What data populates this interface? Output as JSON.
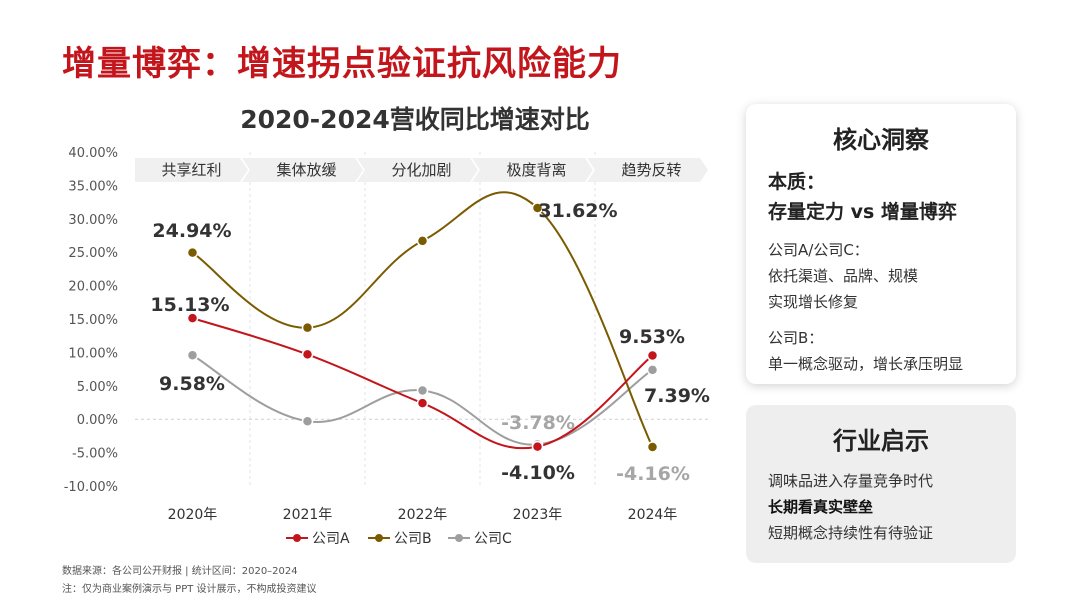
{
  "page_title": "增量博弈：增速拐点验证抗风险能力",
  "chart_data": {
    "type": "line",
    "title": "2020-2024营收同比增速对比",
    "categories": [
      "2020年",
      "2021年",
      "2022年",
      "2023年",
      "2024年"
    ],
    "y_ticks": [
      "40.00%",
      "35.00%",
      "30.00%",
      "25.00%",
      "20.00%",
      "15.00%",
      "10.00%",
      "5.00%",
      "0.00%",
      "-5.00%",
      "-10.00%"
    ],
    "ylim": [
      -10,
      40
    ],
    "phases": [
      "共享红利",
      "集体放缓",
      "分化加剧",
      "极度背离",
      "趋势反转"
    ],
    "series": [
      {
        "name": "公司A",
        "color": "#c3161c",
        "values": [
          15.13,
          9.7,
          2.4,
          -4.1,
          9.53
        ]
      },
      {
        "name": "公司B",
        "color": "#7a5b00",
        "values": [
          24.94,
          13.7,
          26.7,
          31.62,
          -4.16
        ]
      },
      {
        "name": "公司C",
        "color": "#9e9e9e",
        "values": [
          9.58,
          -0.3,
          4.3,
          -3.78,
          7.39
        ]
      }
    ],
    "data_labels": [
      {
        "text": "24.94%",
        "color": "#333333"
      },
      {
        "text": "15.13%",
        "color": "#333333"
      },
      {
        "text": "9.58%",
        "color": "#333333"
      },
      {
        "text": "31.62%",
        "color": "#333333"
      },
      {
        "text": "-3.78%",
        "color": "#a6a6a6"
      },
      {
        "text": "-4.10%",
        "color": "#333333"
      },
      {
        "text": "9.53%",
        "color": "#333333"
      },
      {
        "text": "7.39%",
        "color": "#333333"
      },
      {
        "text": "-4.16%",
        "color": "#a6a6a6"
      }
    ]
  },
  "insight": {
    "title": "核心洞察",
    "essence_label": "本质：",
    "essence_value": "存量定力 vs 增量博弈",
    "ac_title": "公司A/公司C：",
    "ac_line1": "依托渠道、品牌、规模",
    "ac_line2": "实现增长修复",
    "b_title": "公司B：",
    "b_line": "单一概念驱动，增长承压明显"
  },
  "industry": {
    "title": "行业启示",
    "line1": "调味品进入存量竞争时代",
    "line2": "长期看真实壁垒",
    "line3": "短期概念持续性有待验证"
  },
  "footnotes": {
    "source": "数据来源：各公司公开财报 | 统计区间：2020–2024",
    "note": "注：仅为商业案例演示与 PPT 设计展示，不构成投资建议"
  }
}
